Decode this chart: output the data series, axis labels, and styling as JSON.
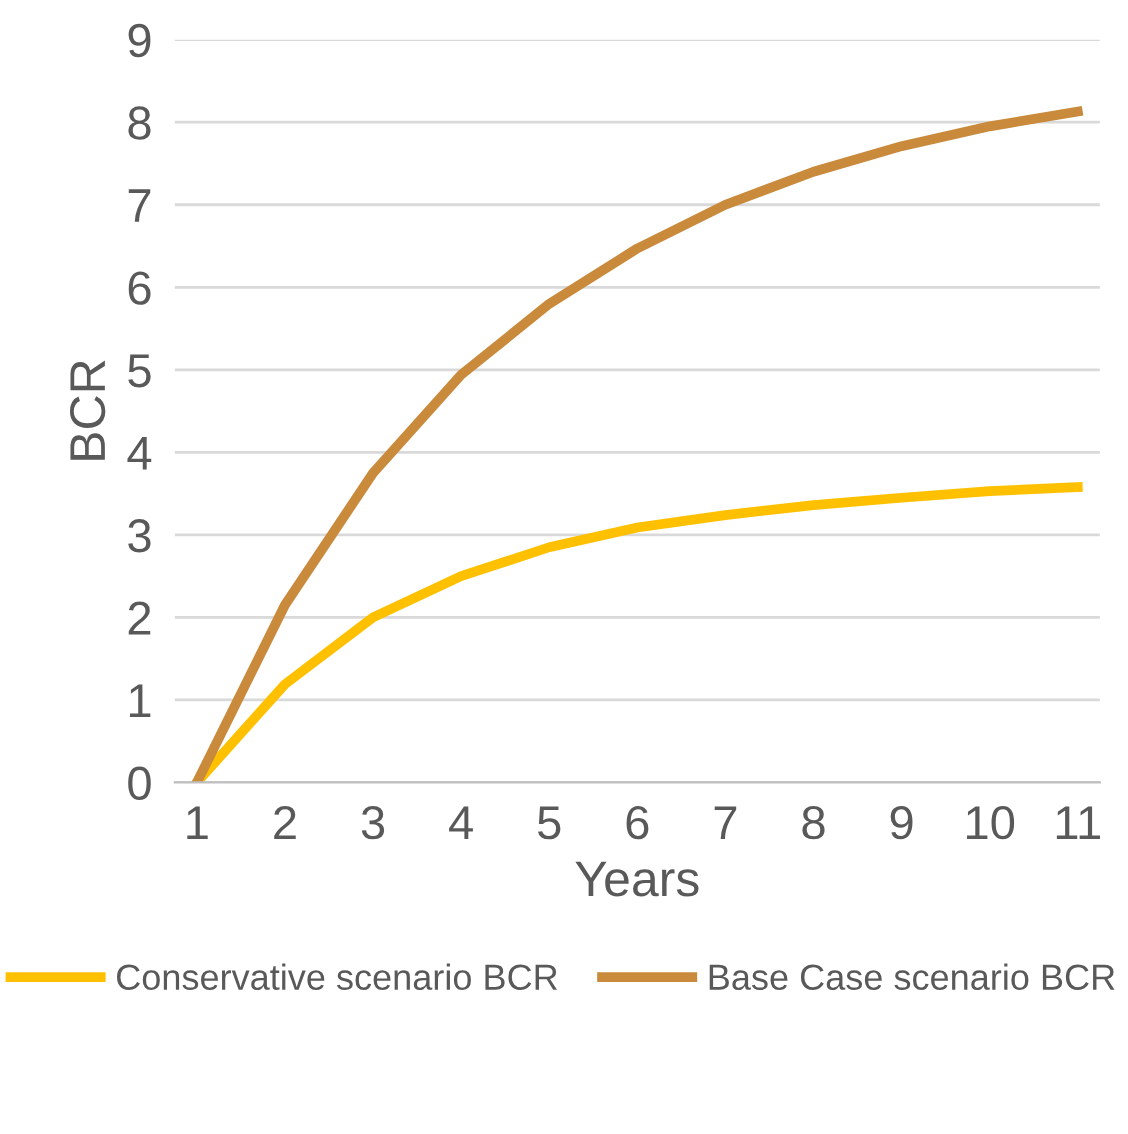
{
  "chart_data": {
    "type": "line",
    "xlabel": "Years",
    "ylabel": "BCR",
    "categories": [
      "1",
      "2",
      "3",
      "4",
      "5",
      "6",
      "7",
      "8",
      "9",
      "10",
      "11"
    ],
    "series": [
      {
        "name": "Conservative scenario BCR",
        "color": "#ffc000",
        "values": [
          0,
          1.19,
          2.0,
          2.5,
          2.85,
          3.09,
          3.24,
          3.36,
          3.45,
          3.53,
          3.58
        ]
      },
      {
        "name": "Base Case scenario BCR",
        "color": "#c98a3c",
        "values": [
          0,
          2.15,
          3.75,
          4.94,
          5.8,
          6.47,
          7.0,
          7.4,
          7.71,
          7.95,
          8.13
        ]
      }
    ],
    "ylim": [
      0,
      9
    ],
    "yticks": [
      0,
      1,
      2,
      3,
      4,
      5,
      6,
      7,
      8,
      9
    ],
    "grid": "y",
    "legend": "bottom",
    "line_style": "solid",
    "marker": "none"
  }
}
